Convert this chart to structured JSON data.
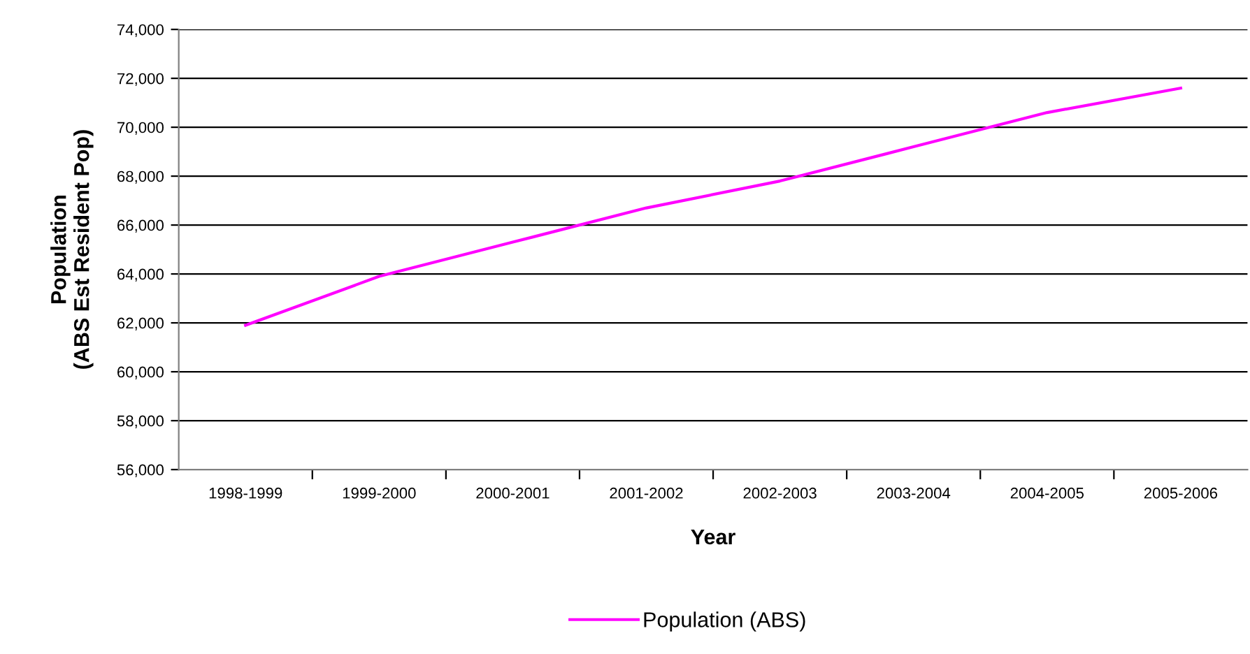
{
  "chart_data": {
    "type": "line",
    "xlabel": "Year",
    "ylabel": "Population\n(ABS Est Resident Pop)",
    "categories": [
      "1998-1999",
      "1999-2000",
      "2000-2001",
      "2001-2002",
      "2002-2003",
      "2003-2004",
      "2004-2005",
      "2005-2006"
    ],
    "series": [
      {
        "name": "Population (ABS)",
        "color": "#ff00ff",
        "values": [
          61900,
          63900,
          65300,
          66700,
          67800,
          69200,
          70600,
          71600
        ]
      }
    ],
    "ylim": [
      56000,
      74000
    ],
    "yticks": [
      {
        "value": 56000,
        "label": "56,000"
      },
      {
        "value": 58000,
        "label": "58,000"
      },
      {
        "value": 60000,
        "label": "60,000"
      },
      {
        "value": 62000,
        "label": "62,000"
      },
      {
        "value": 64000,
        "label": "64,000"
      },
      {
        "value": 66000,
        "label": "66,000"
      },
      {
        "value": 68000,
        "label": "68,000"
      },
      {
        "value": 70000,
        "label": "70,000"
      },
      {
        "value": 72000,
        "label": "72,000"
      },
      {
        "value": 74000,
        "label": "74,000"
      }
    ],
    "grid": "y",
    "legend": "bottom",
    "marker": "none",
    "line_style": "solid"
  }
}
